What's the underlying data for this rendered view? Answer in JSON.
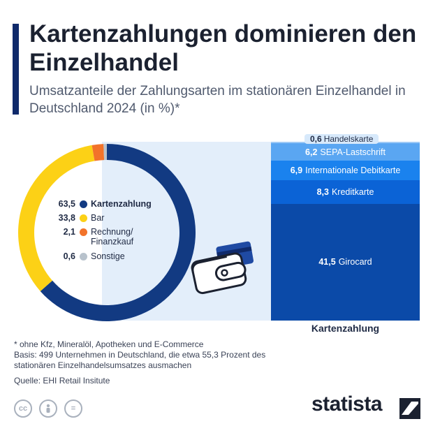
{
  "header": {
    "title": "Kartenzahlungen dominieren den Einzelhandel",
    "subtitle": "Umsatzanteile der Zahlungsarten im stationären Einzelhandel in Deutschland 2024 (in %)*"
  },
  "chart_data": [
    {
      "type": "pie",
      "categories": [
        "Kartenzahlung",
        "Bar",
        "Rechnung/ Finanzkauf",
        "Sonstige"
      ],
      "values": [
        63.5,
        33.8,
        2.1,
        0.6
      ],
      "labels": [
        "63,5",
        "33,8",
        "2,1",
        "0,6"
      ],
      "colors": [
        "#123a82",
        "#fcd116",
        "#f2732a",
        "#b8c2cc"
      ]
    },
    {
      "type": "bar",
      "stacked": true,
      "xlabel": "Kartenzahlung",
      "categories": [
        "Girocard",
        "Kreditkarte",
        "Internationale Debitkarte",
        "SEPA-Lastschrift",
        "Handelskarte"
      ],
      "values": [
        41.5,
        8.3,
        6.9,
        6.2,
        0.6
      ],
      "labels": [
        "41,5",
        "8,3",
        "6,9",
        "6,2",
        "0,6"
      ],
      "colors": [
        "#0b4aa8",
        "#0b63d6",
        "#1a82ee",
        "#5aa6f2",
        "#9fcaf6"
      ]
    }
  ],
  "footnotes": {
    "note": "* ohne Kfz, Mineralöl, Apotheken und E-Commerce",
    "basis": "Basis: 499 Unternehmen in Deutschland, die etwa 55,3 Prozent des\nstationären Einzelhandelsumsatzes ausmachen",
    "source": "Quelle: EHI Retail Insitute"
  },
  "license_icons": [
    "cc-icon",
    "person-icon",
    "equals-icon"
  ],
  "brand": {
    "name": "statista"
  }
}
